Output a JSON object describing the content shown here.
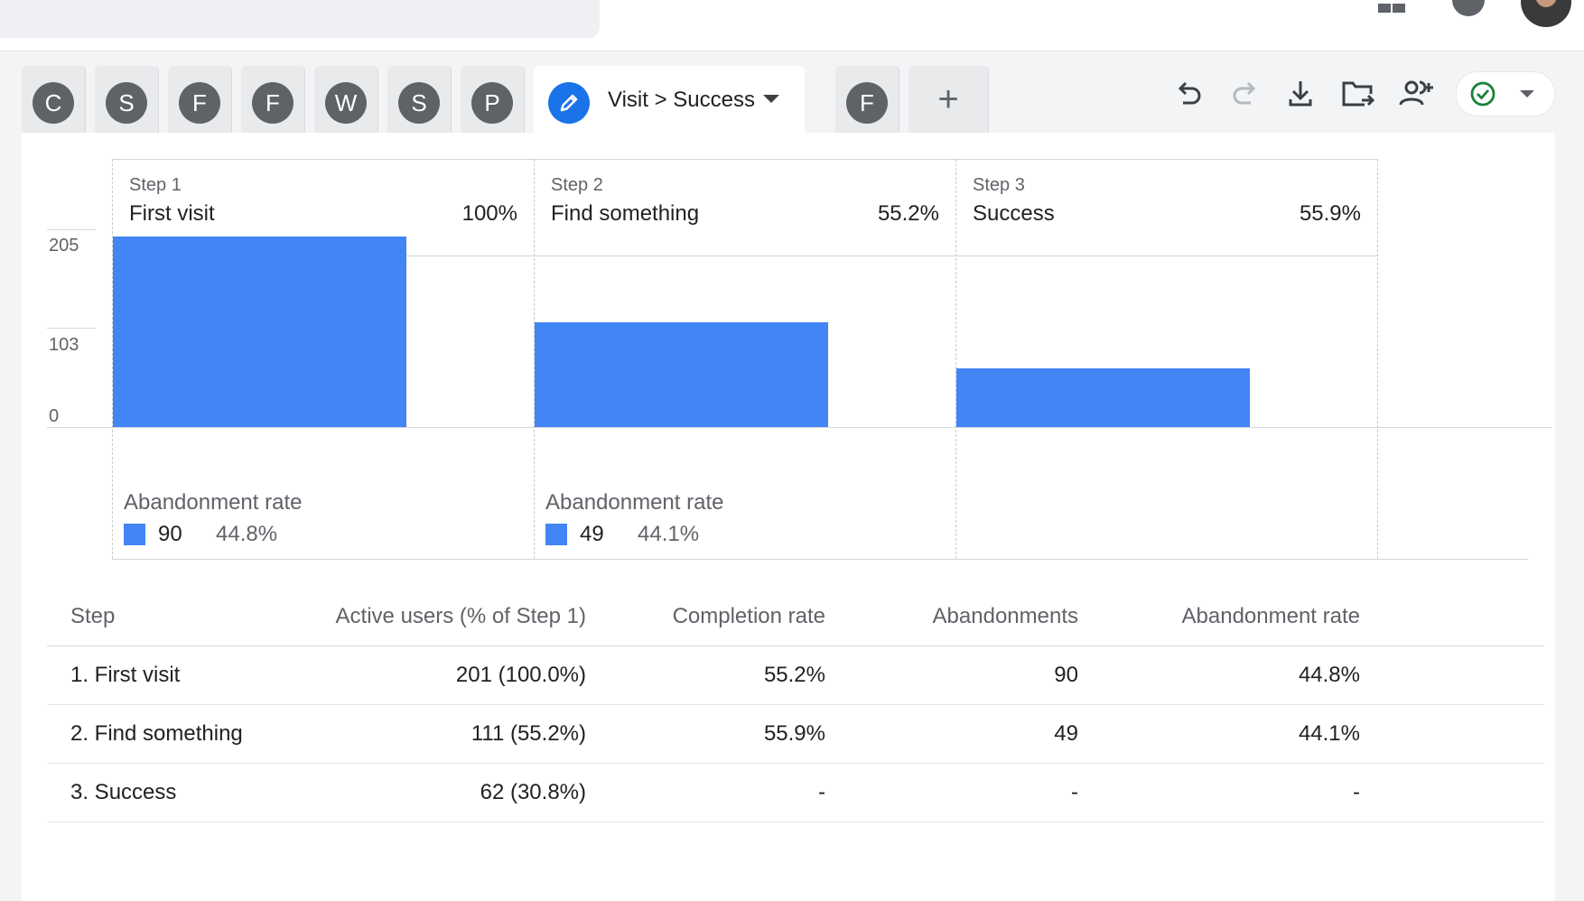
{
  "topbar": {},
  "tabs": [
    {
      "letter": "C"
    },
    {
      "letter": "S"
    },
    {
      "letter": "F"
    },
    {
      "letter": "F"
    },
    {
      "letter": "W"
    },
    {
      "letter": "S"
    },
    {
      "letter": "P"
    }
  ],
  "active_tab": {
    "label": "Visit > Success",
    "icon": "pencil-icon"
  },
  "after_tab": {
    "letter": "F"
  },
  "add_tab": {
    "label": "+"
  },
  "toolbar": {
    "icons": [
      "undo-icon",
      "redo-icon",
      "download-icon",
      "move-to-folder-icon",
      "share-icon",
      "check-circle-icon"
    ],
    "accent_check": "#188038"
  },
  "colors": {
    "bar": "#4285f4",
    "active_tab": "#1a73e8",
    "tab_avatar": "#5f6368"
  },
  "chart_data": {
    "type": "bar",
    "categories": [
      "First visit",
      "Find something",
      "Success"
    ],
    "step_labels": [
      "Step 1",
      "Step 2",
      "Step 3"
    ],
    "step_percent": [
      "100%",
      "55.2%",
      "55.9%"
    ],
    "values": [
      201,
      111,
      62
    ],
    "yticks": [
      "205",
      "103",
      "0"
    ],
    "ylim": [
      0,
      205
    ],
    "abandonment_title": "Abandonment rate",
    "abandonment": [
      {
        "count": "90",
        "rate": "44.8%"
      },
      {
        "count": "49",
        "rate": "44.1%"
      }
    ]
  },
  "table": {
    "headers": [
      "Step",
      "Active users (% of Step 1)",
      "Completion rate",
      "Abandonments",
      "Abandonment rate"
    ],
    "rows": [
      [
        "1. First visit",
        "201 (100.0%)",
        "55.2%",
        "90",
        "44.8%"
      ],
      [
        "2. Find something",
        "111 (55.2%)",
        "55.9%",
        "49",
        "44.1%"
      ],
      [
        "3. Success",
        "62 (30.8%)",
        "-",
        "-",
        "-"
      ]
    ]
  }
}
